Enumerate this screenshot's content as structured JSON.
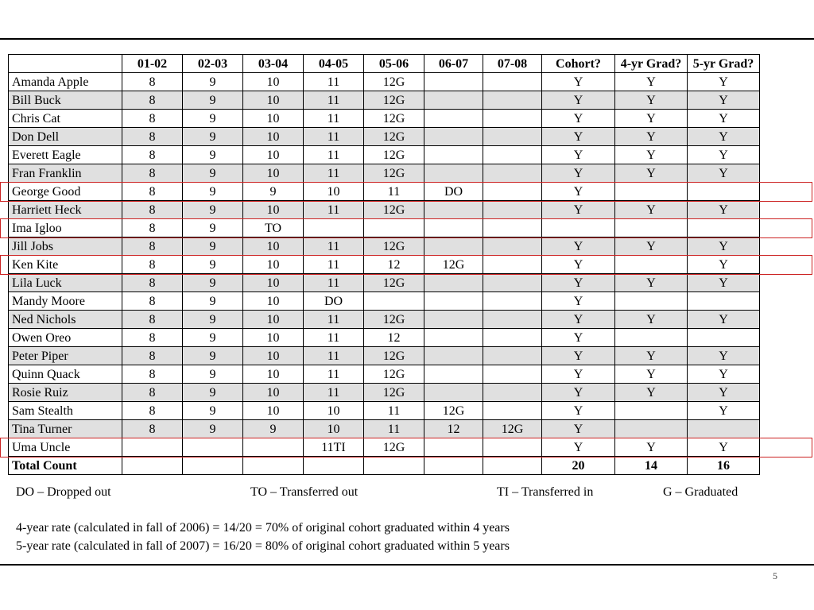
{
  "table": {
    "headers": [
      "",
      "01-02",
      "02-03",
      "03-04",
      "04-05",
      "05-06",
      "06-07",
      "07-08",
      "Cohort?",
      "4-yr Grad?",
      "5-yr Grad?"
    ],
    "rows": [
      [
        "Amanda Apple",
        "8",
        "9",
        "10",
        "11",
        "12G",
        "",
        "",
        "Y",
        "Y",
        "Y"
      ],
      [
        "Bill Buck",
        "8",
        "9",
        "10",
        "11",
        "12G",
        "",
        "",
        "Y",
        "Y",
        "Y"
      ],
      [
        "Chris Cat",
        "8",
        "9",
        "10",
        "11",
        "12G",
        "",
        "",
        "Y",
        "Y",
        "Y"
      ],
      [
        "Don Dell",
        "8",
        "9",
        "10",
        "11",
        "12G",
        "",
        "",
        "Y",
        "Y",
        "Y"
      ],
      [
        "Everett Eagle",
        "8",
        "9",
        "10",
        "11",
        "12G",
        "",
        "",
        "Y",
        "Y",
        "Y"
      ],
      [
        "Fran Franklin",
        "8",
        "9",
        "10",
        "11",
        "12G",
        "",
        "",
        "Y",
        "Y",
        "Y"
      ],
      [
        "George Good",
        "8",
        "9",
        "9",
        "10",
        "11",
        "DO",
        "",
        "Y",
        "",
        ""
      ],
      [
        "Harriett Heck",
        "8",
        "9",
        "10",
        "11",
        "12G",
        "",
        "",
        "Y",
        "Y",
        "Y"
      ],
      [
        "Ima Igloo",
        "8",
        "9",
        "TO",
        "",
        "",
        "",
        "",
        "",
        "",
        ""
      ],
      [
        "Jill Jobs",
        "8",
        "9",
        "10",
        "11",
        "12G",
        "",
        "",
        "Y",
        "Y",
        "Y"
      ],
      [
        "Ken Kite",
        "8",
        "9",
        "10",
        "11",
        "12",
        "12G",
        "",
        "Y",
        "",
        "Y"
      ],
      [
        "Lila Luck",
        "8",
        "9",
        "10",
        "11",
        "12G",
        "",
        "",
        "Y",
        "Y",
        "Y"
      ],
      [
        "Mandy Moore",
        "8",
        "9",
        "10",
        "DO",
        "",
        "",
        "",
        "Y",
        "",
        ""
      ],
      [
        "Ned Nichols",
        "8",
        "9",
        "10",
        "11",
        "12G",
        "",
        "",
        "Y",
        "Y",
        "Y"
      ],
      [
        "Owen Oreo",
        "8",
        "9",
        "10",
        "11",
        "12",
        "",
        "",
        "Y",
        "",
        ""
      ],
      [
        "Peter Piper",
        "8",
        "9",
        "10",
        "11",
        "12G",
        "",
        "",
        "Y",
        "Y",
        "Y"
      ],
      [
        "Quinn Quack",
        "8",
        "9",
        "10",
        "11",
        "12G",
        "",
        "",
        "Y",
        "Y",
        "Y"
      ],
      [
        "Rosie Ruiz",
        "8",
        "9",
        "10",
        "11",
        "12G",
        "",
        "",
        "Y",
        "Y",
        "Y"
      ],
      [
        "Sam Stealth",
        "8",
        "9",
        "10",
        "10",
        "11",
        "12G",
        "",
        "Y",
        "",
        "Y"
      ],
      [
        "Tina Turner",
        "8",
        "9",
        "9",
        "10",
        "11",
        "12",
        "12G",
        "Y",
        "",
        ""
      ],
      [
        "Uma Uncle",
        "",
        "",
        "",
        "11TI",
        "12G",
        "",
        "",
        "Y",
        "Y",
        "Y"
      ]
    ],
    "shaded_rows": [
      1,
      3,
      5,
      7,
      9,
      11,
      13,
      15,
      17,
      19
    ],
    "highlighted_rows": [
      6,
      8,
      10,
      20
    ],
    "total_row": [
      "Total Count",
      "",
      "",
      "",
      "",
      "",
      "",
      "",
      "20",
      "14",
      "16"
    ]
  },
  "legend": {
    "dropped_out": "DO – Dropped out",
    "transferred_out": "TO – Transferred out",
    "transferred_in": "TI – Transferred in",
    "graduated": "G – Graduated"
  },
  "rates": {
    "four_year": "4-year rate (calculated in fall of 2006) = 14/20 = 70% of original cohort graduated within 4 years",
    "five_year": "5-year rate (calculated in fall of 2007) = 16/20 = 80% of original cohort graduated within 5 years"
  },
  "page_number": "5",
  "colors": {
    "row_shade": "#e0e0e0",
    "highlight_border": "#cc2222"
  }
}
